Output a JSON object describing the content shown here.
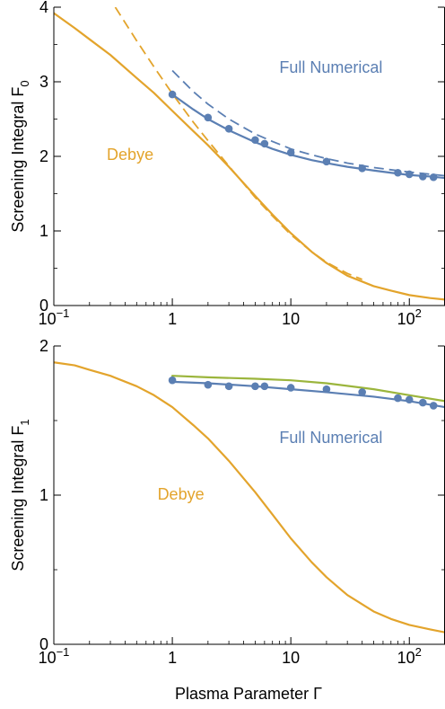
{
  "figure": {
    "xlabel": "Plasma Parameter Γ"
  },
  "colors": {
    "numerical": "#5B7FB3",
    "debye": "#E3A42C",
    "green": "#9BB53C",
    "axis": "#000000"
  },
  "chart_data": [
    {
      "type": "line",
      "panel": "top",
      "ylabel": "Screening Integral  F",
      "ylabel_sub": "0",
      "xscale": "log",
      "xlim": [
        0.1,
        200
      ],
      "ylim": [
        0,
        4
      ],
      "x_ticks": [
        {
          "v": 0.1,
          "base": "10",
          "exp": "−1"
        },
        {
          "v": 1,
          "label": "1"
        },
        {
          "v": 10,
          "label": "10"
        },
        {
          "v": 100,
          "base": "10",
          "exp": "2"
        }
      ],
      "y_ticks": [
        {
          "v": 0,
          "label": "0"
        },
        {
          "v": 1,
          "label": "1"
        },
        {
          "v": 2,
          "label": "2"
        },
        {
          "v": 3,
          "label": "3"
        },
        {
          "v": 4,
          "label": "4"
        }
      ],
      "annotations": [
        {
          "text": "Full Numerical",
          "x": 8,
          "y": 3.12,
          "color": "numerical"
        },
        {
          "text": "Debye",
          "x": 0.28,
          "y": 1.95,
          "color": "debye"
        }
      ],
      "series": [
        {
          "style": "solid",
          "color": "debye",
          "x": [
            0.1,
            0.15,
            0.2,
            0.3,
            0.5,
            0.7,
            1,
            1.5,
            2,
            3,
            5,
            7,
            10,
            15,
            20,
            30,
            50,
            70,
            100,
            150,
            200
          ],
          "y": [
            3.92,
            3.72,
            3.57,
            3.36,
            3.05,
            2.85,
            2.61,
            2.34,
            2.15,
            1.86,
            1.47,
            1.22,
            0.97,
            0.72,
            0.57,
            0.4,
            0.26,
            0.2,
            0.14,
            0.1,
            0.08
          ]
        },
        {
          "style": "dashed",
          "color": "debye",
          "x": [
            0.33,
            0.5,
            0.7,
            1,
            1.5,
            2,
            3,
            5,
            7,
            10,
            15,
            20,
            30,
            40
          ],
          "y": [
            4.0,
            3.55,
            3.2,
            2.84,
            2.46,
            2.21,
            1.87,
            1.45,
            1.2,
            0.95,
            0.72,
            0.58,
            0.43,
            0.35
          ]
        },
        {
          "style": "dashed",
          "color": "numerical",
          "x": [
            1,
            1.5,
            2,
            3,
            5,
            7,
            10,
            15,
            20,
            30,
            50,
            70,
            100,
            150,
            200
          ],
          "y": [
            3.15,
            2.87,
            2.7,
            2.5,
            2.3,
            2.2,
            2.1,
            2.02,
            1.97,
            1.91,
            1.85,
            1.82,
            1.79,
            1.76,
            1.74
          ]
        },
        {
          "style": "solid",
          "color": "numerical",
          "x": [
            1,
            1.5,
            2,
            3,
            5,
            7,
            10,
            15,
            20,
            30,
            50,
            70,
            100,
            150,
            200
          ],
          "y": [
            2.83,
            2.63,
            2.5,
            2.35,
            2.19,
            2.1,
            2.02,
            1.95,
            1.91,
            1.86,
            1.81,
            1.78,
            1.75,
            1.73,
            1.71
          ]
        },
        {
          "style": "markers",
          "color": "numerical",
          "x": [
            1,
            2,
            3,
            5,
            6,
            10,
            20,
            40,
            80,
            100,
            130,
            160
          ],
          "y": [
            2.83,
            2.52,
            2.37,
            2.22,
            2.17,
            2.05,
            1.93,
            1.84,
            1.78,
            1.76,
            1.73,
            1.72
          ]
        }
      ]
    },
    {
      "type": "line",
      "panel": "bottom",
      "ylabel": "Screening Integral  F",
      "ylabel_sub": "1",
      "xscale": "log",
      "xlim": [
        0.1,
        200
      ],
      "ylim": [
        0,
        2
      ],
      "x_ticks": [
        {
          "v": 0.1,
          "base": "10",
          "exp": "−1"
        },
        {
          "v": 1,
          "label": "1"
        },
        {
          "v": 10,
          "label": "10"
        },
        {
          "v": 100,
          "base": "10",
          "exp": "2"
        }
      ],
      "y_ticks": [
        {
          "v": 0,
          "label": "0"
        },
        {
          "v": 1,
          "label": "1"
        },
        {
          "v": 2,
          "label": "2"
        }
      ],
      "annotations": [
        {
          "text": "Full Numerical",
          "x": 8,
          "y": 1.35,
          "color": "numerical"
        },
        {
          "text": "Debye",
          "x": 0.75,
          "y": 0.97,
          "color": "debye"
        }
      ],
      "series": [
        {
          "style": "solid",
          "color": "debye",
          "x": [
            0.1,
            0.15,
            0.2,
            0.3,
            0.5,
            0.7,
            1,
            1.5,
            2,
            3,
            5,
            7,
            10,
            15,
            20,
            30,
            50,
            70,
            100,
            150,
            200
          ],
          "y": [
            1.89,
            1.87,
            1.84,
            1.8,
            1.73,
            1.67,
            1.59,
            1.47,
            1.38,
            1.23,
            1.02,
            0.87,
            0.71,
            0.55,
            0.45,
            0.33,
            0.22,
            0.17,
            0.13,
            0.1,
            0.08
          ]
        },
        {
          "style": "solid",
          "color": "green",
          "x": [
            1,
            2,
            5,
            10,
            20,
            50,
            100,
            200
          ],
          "y": [
            1.8,
            1.79,
            1.78,
            1.77,
            1.75,
            1.71,
            1.67,
            1.63
          ]
        },
        {
          "style": "solid",
          "color": "numerical",
          "x": [
            1,
            2,
            5,
            10,
            20,
            50,
            100,
            200
          ],
          "y": [
            1.76,
            1.75,
            1.73,
            1.71,
            1.69,
            1.66,
            1.63,
            1.59
          ]
        },
        {
          "style": "markers",
          "color": "numerical",
          "x": [
            1,
            2,
            3,
            5,
            6,
            10,
            20,
            40,
            80,
            100,
            130,
            160
          ],
          "y": [
            1.77,
            1.74,
            1.73,
            1.73,
            1.73,
            1.72,
            1.71,
            1.69,
            1.65,
            1.64,
            1.62,
            1.6
          ]
        }
      ]
    }
  ]
}
